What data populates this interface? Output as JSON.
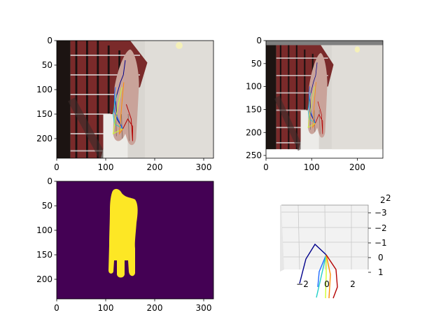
{
  "chart_data": [
    {
      "type": "image",
      "panel": "top-left",
      "content": "RGB photo of a hand with 2D hand-pose skeleton overlay",
      "xlim": [
        0,
        320
      ],
      "ylim": [
        240,
        0
      ],
      "x_ticks": [
        "0",
        "100",
        "200",
        "300"
      ],
      "y_ticks": [
        "0",
        "50",
        "100",
        "150",
        "200"
      ]
    },
    {
      "type": "image",
      "panel": "top-right",
      "content": "cropped and padded RGB hand photo with 2D hand-pose skeleton overlay",
      "xlim": [
        0,
        256
      ],
      "ylim": [
        256,
        0
      ],
      "x_ticks": [
        "0",
        "100",
        "200"
      ],
      "y_ticks": [
        "0",
        "50",
        "100",
        "150",
        "200",
        "250"
      ]
    },
    {
      "type": "heatmap",
      "panel": "bottom-left",
      "content": "binary hand segmentation mask (yellow hand on dark purple background)",
      "colors": {
        "background": "#440154",
        "foreground": "#fde725"
      },
      "xlim": [
        0,
        320
      ],
      "ylim": [
        240,
        0
      ],
      "x_ticks": [
        "0",
        "100",
        "200",
        "300"
      ],
      "y_ticks": [
        "0",
        "50",
        "100",
        "150",
        "200"
      ]
    },
    {
      "type": "line3d",
      "panel": "bottom-right",
      "content": "3D hand skeleton",
      "x_ticks": [
        "−2",
        "0",
        "2"
      ],
      "y_ticks": [
        "−3",
        "−2",
        "−1",
        "0",
        "1"
      ],
      "z_ticks": [
        "2",
        "2"
      ]
    }
  ],
  "colors": {
    "skeleton": [
      "#00008b",
      "#1e6cff",
      "#1fd0c8",
      "#cfff2f",
      "#ff8c00",
      "#b40000"
    ]
  }
}
